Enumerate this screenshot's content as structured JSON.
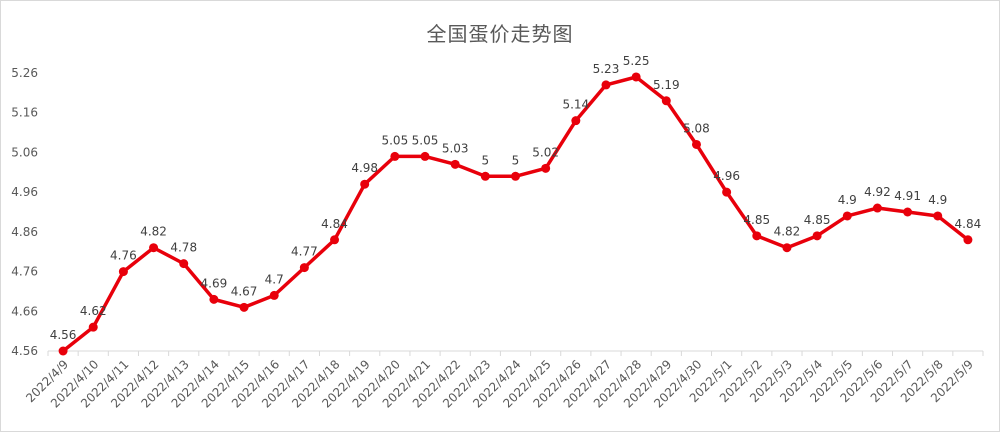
{
  "chart_data": {
    "type": "line",
    "title": "全国蛋价走势图",
    "xlabel": "",
    "ylabel": "",
    "x": [
      "2022/4/9",
      "2022/4/10",
      "2022/4/11",
      "2022/4/12",
      "2022/4/13",
      "2022/4/14",
      "2022/4/15",
      "2022/4/16",
      "2022/4/17",
      "2022/4/18",
      "2022/4/19",
      "2022/4/20",
      "2022/4/21",
      "2022/4/22",
      "2022/4/23",
      "2022/4/24",
      "2022/4/25",
      "2022/4/26",
      "2022/4/27",
      "2022/4/28",
      "2022/4/29",
      "2022/4/30",
      "2022/5/1",
      "2022/5/2",
      "2022/5/3",
      "2022/5/4",
      "2022/5/5",
      "2022/5/6",
      "2022/5/7",
      "2022/5/8",
      "2022/5/9"
    ],
    "values": [
      4.56,
      4.62,
      4.76,
      4.82,
      4.78,
      4.69,
      4.67,
      4.7,
      4.77,
      4.84,
      4.98,
      5.05,
      5.05,
      5.03,
      5,
      5,
      5.02,
      5.14,
      5.23,
      5.25,
      5.19,
      5.08,
      4.96,
      4.85,
      4.82,
      4.85,
      4.9,
      4.92,
      4.91,
      4.9,
      4.84
    ],
    "data_labels": [
      "4.56",
      "4.62",
      "4.76",
      "4.82",
      "4.78",
      "4.69",
      "4.67",
      "4.7",
      "4.77",
      "4.84",
      "4.98",
      "5.05",
      "5.05",
      "5.03",
      "5",
      "5",
      "5.02",
      "5.14",
      "5.23",
      "5.25",
      "5.19",
      "5.08",
      "4.96",
      "4.85",
      "4.82",
      "4.85",
      "4.9",
      "4.92",
      "4.91",
      "4.9",
      "4.84"
    ],
    "yticks": [
      "4.56",
      "4.66",
      "4.76",
      "4.86",
      "4.96",
      "5.06",
      "5.16",
      "5.26"
    ],
    "ylim": [
      4.56,
      5.26
    ],
    "grid": false,
    "legend": "none",
    "line_color": "#e8000b"
  }
}
